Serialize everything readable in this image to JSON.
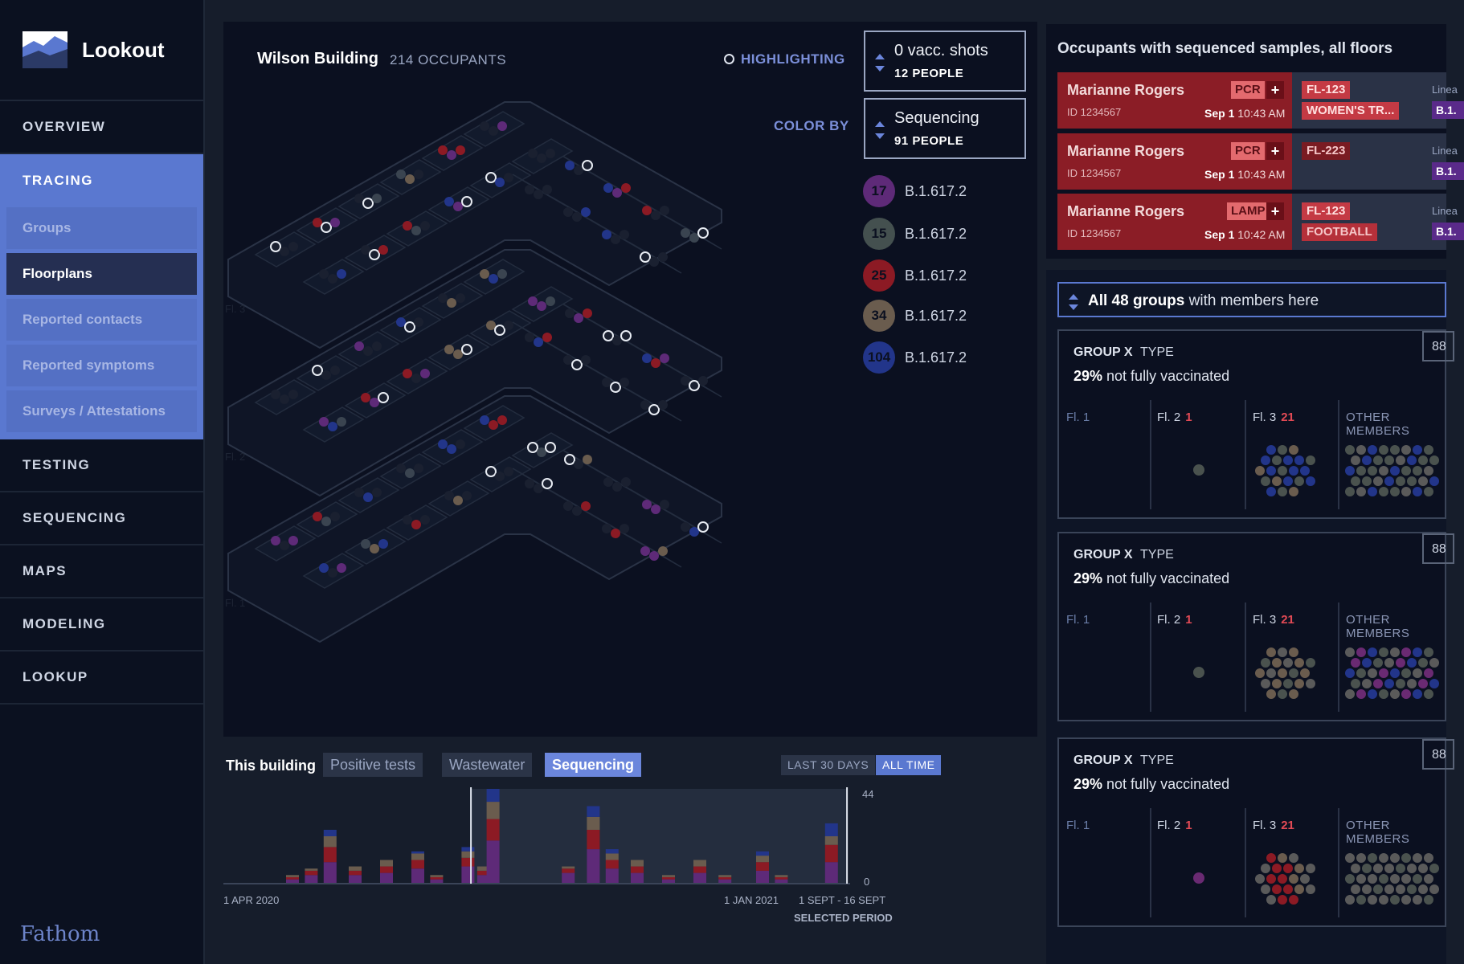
{
  "app": {
    "name": "Lookout",
    "brand_footer": "Fathom"
  },
  "sidebar": {
    "nav": [
      {
        "label": "OVERVIEW"
      },
      {
        "label": "TRACING"
      },
      {
        "label": "TESTING"
      },
      {
        "label": "SEQUENCING"
      },
      {
        "label": "MAPS"
      },
      {
        "label": "MODELING"
      },
      {
        "label": "LOOKUP"
      }
    ],
    "tracing_sub": [
      {
        "label": "Groups"
      },
      {
        "label": "Floorplans"
      },
      {
        "label": "Reported contacts"
      },
      {
        "label": "Reported symptoms"
      },
      {
        "label": "Surveys / Attestations"
      }
    ]
  },
  "floorplan": {
    "building": "Wilson Building",
    "occupants": "214 OCCUPANTS",
    "highlighting_label": "HIGHLIGHTING",
    "color_by_label": "COLOR BY",
    "highlight_select": {
      "value": "0 vacc. shots",
      "count": "12 PEOPLE"
    },
    "color_select": {
      "value": "Sequencing",
      "count": "91 PEOPLE"
    },
    "legend": [
      {
        "count": "17",
        "label": "B.1.617.2",
        "color": "#5e2a78"
      },
      {
        "count": "15",
        "label": "B.1.617.2",
        "color": "#44504f"
      },
      {
        "count": "25",
        "label": "B.1.617.2",
        "color": "#8c1a24"
      },
      {
        "count": "34",
        "label": "B.1.617.2",
        "color": "#6a5c4e"
      },
      {
        "count": "104",
        "label": "B.1.617.2",
        "color": "#22358a"
      }
    ],
    "floor_labels": [
      "Fl. 3",
      "Fl. 2",
      "Fl. 1"
    ]
  },
  "chart": {
    "title": "This building",
    "tabs": [
      "Positive tests",
      "Wastewater",
      "Sequencing"
    ],
    "active_tab": "Sequencing",
    "ranges": [
      "LAST 30 DAYS",
      "ALL TIME"
    ],
    "active_range": "ALL TIME",
    "y_max": "44",
    "y_min": "0",
    "x_start": "1 APR 2020",
    "x_mid": "1 JAN 2021",
    "selected_range": "1 SEPT - 16 SEPT",
    "selected_caption": "SELECTED PERIOD"
  },
  "chart_data": {
    "type": "bar",
    "stacked": true,
    "series_colors": [
      "#5e2a78",
      "#8c1a24",
      "#6a5c4e",
      "#22358a"
    ],
    "ylim": [
      0,
      44
    ],
    "bars": [
      {
        "x": 0.1,
        "values": [
          2,
          1,
          1,
          0
        ]
      },
      {
        "x": 0.13,
        "values": [
          4,
          2,
          1,
          0
        ]
      },
      {
        "x": 0.16,
        "values": [
          10,
          7,
          5,
          3
        ]
      },
      {
        "x": 0.2,
        "values": [
          4,
          2,
          2,
          0
        ]
      },
      {
        "x": 0.25,
        "values": [
          5,
          3,
          3,
          0
        ]
      },
      {
        "x": 0.3,
        "values": [
          7,
          4,
          3,
          1
        ]
      },
      {
        "x": 0.33,
        "values": [
          2,
          1,
          1,
          0
        ]
      },
      {
        "x": 0.38,
        "values": [
          8,
          4,
          3,
          2
        ]
      },
      {
        "x": 0.405,
        "values": [
          4,
          2,
          2,
          0
        ]
      },
      {
        "x": 0.42,
        "values": [
          20,
          10,
          8,
          6
        ]
      },
      {
        "x": 0.54,
        "values": [
          5,
          2,
          1,
          0
        ]
      },
      {
        "x": 0.58,
        "values": [
          16,
          9,
          6,
          5
        ]
      },
      {
        "x": 0.61,
        "values": [
          7,
          4,
          3,
          2
        ]
      },
      {
        "x": 0.65,
        "values": [
          5,
          3,
          3,
          0
        ]
      },
      {
        "x": 0.7,
        "values": [
          2,
          1,
          1,
          0
        ]
      },
      {
        "x": 0.75,
        "values": [
          5,
          3,
          3,
          0
        ]
      },
      {
        "x": 0.79,
        "values": [
          2,
          1,
          1,
          0
        ]
      },
      {
        "x": 0.85,
        "values": [
          6,
          4,
          3,
          2
        ]
      },
      {
        "x": 0.88,
        "values": [
          2,
          1,
          1,
          0
        ]
      },
      {
        "x": 0.96,
        "values": [
          10,
          8,
          4,
          6
        ]
      }
    ],
    "selection": [
      0.395,
      0.995
    ]
  },
  "occupants": {
    "header": "Occupants with sequenced samples, all floors",
    "items": [
      {
        "name": "Marianne Rogers",
        "id": "ID 1234567",
        "test": "PCR",
        "plus": "+",
        "date": "Sep 1",
        "time": "10:43 AM",
        "floor": "FL-123",
        "group": "WOMEN'S TR...",
        "lineage_label": "Linea",
        "lineage": "B.1."
      },
      {
        "name": "Marianne Rogers",
        "id": "ID 1234567",
        "test": "PCR",
        "plus": "+",
        "date": "Sep 1",
        "time": "10:43 AM",
        "floor": "FL-223",
        "group": "",
        "lineage_label": "Linea",
        "lineage": "B.1."
      },
      {
        "name": "Marianne Rogers",
        "id": "ID 1234567",
        "test": "LAMP",
        "plus": "+",
        "date": "Sep 1",
        "time": "10:42 AM",
        "floor": "FL-123",
        "group": "FOOTBALL",
        "lineage_label": "Linea",
        "lineage": "B.1."
      }
    ]
  },
  "groups": {
    "selector_strong": "All 48 groups",
    "selector_rest": " with members here",
    "cards": [
      {
        "name": "GROUP X",
        "type": "TYPE",
        "pct": "29%",
        "vacc_text": " not fully vaccinated",
        "count": "88",
        "fl1": "Fl. 1",
        "fl2": "Fl. 2",
        "fl2_n": "1",
        "fl3": "Fl. 3",
        "fl3_n": "21",
        "other": "OTHER MEMBERS",
        "fl2_dot": "#4a524e"
      },
      {
        "name": "GROUP X",
        "type": "TYPE",
        "pct": "29%",
        "vacc_text": " not fully vaccinated",
        "count": "88",
        "fl1": "Fl. 1",
        "fl2": "Fl. 2",
        "fl2_n": "1",
        "fl3": "Fl. 3",
        "fl3_n": "21",
        "other": "OTHER MEMBERS",
        "fl2_dot": "#4a524e"
      },
      {
        "name": "GROUP X",
        "type": "TYPE",
        "pct": "29%",
        "vacc_text": " not fully vaccinated",
        "count": "88",
        "fl1": "Fl. 1",
        "fl2": "Fl. 2",
        "fl2_n": "1",
        "fl3": "Fl. 3",
        "fl3_n": "21",
        "other": "OTHER MEMBERS",
        "fl2_dot": "#6a2a72"
      }
    ]
  }
}
